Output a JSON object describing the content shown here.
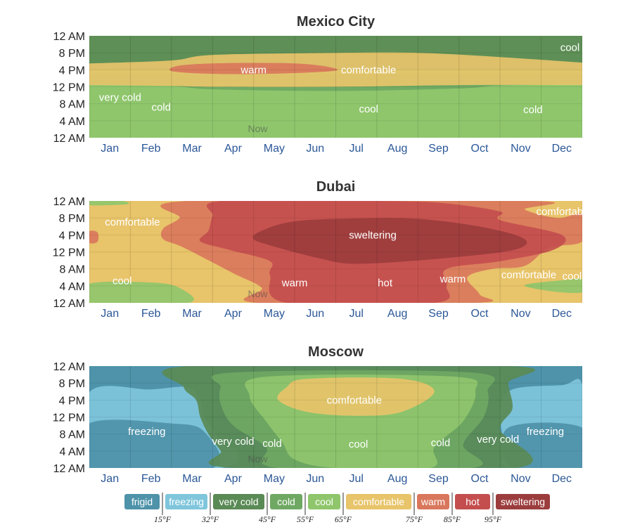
{
  "colors": {
    "frigid": "#4e93a9",
    "freezing": "#7fc6dc",
    "very cold": "#5a8a55",
    "cold": "#6fa863",
    "cool": "#8fc66c",
    "comfortable": "#e8c46a",
    "warm": "#d9775c",
    "hot": "#c44e4e",
    "sweltering": "#9c3d3d"
  },
  "chart_data": [
    {
      "type": "heatmap",
      "title": "Mexico City",
      "categories": [
        "Jan",
        "Feb",
        "Mar",
        "Apr",
        "May",
        "Jun",
        "Jul",
        "Aug",
        "Sep",
        "Oct",
        "Nov",
        "Dec"
      ],
      "y_ticks": [
        "12 AM",
        "8 PM",
        "4 PM",
        "12 PM",
        "8 AM",
        "4 AM",
        "12 AM"
      ],
      "now_label": "Now",
      "now_month": 4.1,
      "background": "cool",
      "bands": [
        {
          "cat": "very cold",
          "top": [
            [
              0,
              16
            ],
            [
              12,
              16
            ]
          ],
          "bottom": [
            [
              0,
              24
            ],
            [
              12,
              24
            ]
          ]
        },
        {
          "cat": "cold",
          "top": [
            [
              0,
              12.5
            ],
            [
              2,
              12.2
            ],
            [
              3,
              11.4
            ],
            [
              6,
              11
            ],
            [
              9,
              11.6
            ],
            [
              10,
              12.3
            ],
            [
              12,
              12.5
            ]
          ],
          "bottom": [
            [
              0,
              15
            ],
            [
              12,
              15
            ]
          ]
        },
        {
          "cat": "cool",
          "top": [
            [
              0,
              10
            ],
            [
              2,
              10
            ],
            [
              3,
              9.6
            ],
            [
              6,
              9.3
            ],
            [
              9,
              9.8
            ],
            [
              10,
              10
            ],
            [
              12,
              10
            ]
          ],
          "bottom": [
            [
              0,
              3.2
            ],
            [
              3,
              4
            ],
            [
              4,
              4.8
            ],
            [
              6,
              4.5
            ],
            [
              8,
              4.5
            ],
            [
              10,
              3.2
            ],
            [
              12,
              3.2
            ]
          ]
        },
        {
          "cat": "comfortable",
          "top": [
            [
              0,
              12.4
            ],
            [
              2,
              12.2
            ],
            [
              3,
              12
            ],
            [
              6,
              12
            ],
            [
              9,
              12.4
            ],
            [
              12,
              12.4
            ]
          ],
          "bottom": [
            [
              0,
              17.5
            ],
            [
              2,
              18.2
            ],
            [
              3,
              19.5
            ],
            [
              6,
              20
            ],
            [
              8,
              20
            ],
            [
              10,
              19
            ],
            [
              12,
              17.7
            ]
          ]
        },
        {
          "cat": "warm",
          "top": [
            [
              2.05,
              15.6
            ],
            [
              3.4,
              15
            ],
            [
              5.2,
              15.3
            ],
            [
              6.05,
              16
            ],
            [
              5.2,
              17.4
            ],
            [
              3.4,
              17.6
            ],
            [
              2.2,
              17
            ]
          ],
          "bottom": null,
          "closed": true
        }
      ],
      "labels": [
        {
          "text": "warm",
          "month": 4.0,
          "hour": 16
        },
        {
          "text": "comfortable",
          "month": 6.8,
          "hour": 16
        },
        {
          "text": "cool",
          "month": 11.7,
          "hour": 21.3
        },
        {
          "text": "very cold",
          "month": 0.75,
          "hour": 9.5
        },
        {
          "text": "cold",
          "month": 1.75,
          "hour": 7.2
        },
        {
          "text": "cool",
          "month": 6.8,
          "hour": 6.8
        },
        {
          "text": "cold",
          "month": 10.8,
          "hour": 6.6
        }
      ]
    },
    {
      "type": "heatmap",
      "title": "Dubai",
      "categories": [
        "Jan",
        "Feb",
        "Mar",
        "Apr",
        "May",
        "Jun",
        "Jul",
        "Aug",
        "Sep",
        "Oct",
        "Nov",
        "Dec"
      ],
      "y_ticks": [
        "12 AM",
        "8 PM",
        "4 PM",
        "12 PM",
        "8 AM",
        "4 AM",
        "12 AM"
      ],
      "now_label": "Now",
      "now_month": 4.1,
      "background": "comfortable",
      "bands": [
        {
          "cat": "cool",
          "top": [
            [
              0,
              4.5
            ],
            [
              1.5,
              4.8
            ],
            [
              2.2,
              3.5
            ],
            [
              2.4,
              0
            ],
            [
              0,
              0
            ]
          ],
          "bottom": null,
          "closed": true
        },
        {
          "cat": "cool",
          "top": [
            [
              12,
              2.5
            ],
            [
              11.2,
              2.8
            ],
            [
              10.6,
              4.2
            ],
            [
              11.6,
              5.4
            ],
            [
              12,
              5.5
            ]
          ],
          "bottom": null,
          "closed": true
        },
        {
          "cat": "cool",
          "top": [
            [
              0,
              24
            ],
            [
              0.8,
              24
            ],
            [
              0.9,
              23.2
            ],
            [
              0,
              23
            ]
          ],
          "bottom": null,
          "closed": true
        },
        {
          "cat": "warm",
          "top": [
            [
              1.8,
              15
            ],
            [
              2.3,
              13
            ],
            [
              3.5,
              7
            ],
            [
              4.2,
              3.5
            ],
            [
              4.1,
              0
            ],
            [
              9.4,
              0
            ],
            [
              9.5,
              2
            ],
            [
              9.2,
              6
            ],
            [
              9.8,
              8
            ],
            [
              10.6,
              8.7
            ],
            [
              11.2,
              13
            ],
            [
              12,
              14.5
            ],
            [
              12,
              20.8
            ],
            [
              11.4,
              20
            ],
            [
              10.6,
              22
            ],
            [
              10.8,
              24
            ],
            [
              2.4,
              24
            ],
            [
              2.2,
              20
            ],
            [
              1.8,
              17.5
            ]
          ]
        },
        {
          "cat": "hot",
          "top": [
            [
              2.7,
              14.5
            ],
            [
              3.4,
              12.5
            ],
            [
              4.4,
              9.8
            ],
            [
              4.4,
              6.5
            ],
            [
              4.8,
              0
            ],
            [
              8.4,
              0
            ],
            [
              8.7,
              4
            ],
            [
              8.7,
              8
            ],
            [
              10,
              9.8
            ],
            [
              11.3,
              12.5
            ],
            [
              11.5,
              16
            ],
            [
              10,
              19.5
            ],
            [
              10,
              21.5
            ],
            [
              8.6,
              23.5
            ],
            [
              7,
              24
            ],
            [
              3.2,
              24
            ],
            [
              3,
              20.5
            ],
            [
              2.9,
              17
            ]
          ]
        },
        {
          "cat": "sweltering",
          "top": [
            [
              4.0,
              15
            ],
            [
              4.6,
              13
            ],
            [
              5.6,
              10.5
            ],
            [
              6.5,
              9.2
            ],
            [
              8.5,
              10.4
            ],
            [
              10.3,
              12.4
            ],
            [
              10.6,
              15
            ],
            [
              9.6,
              17.8
            ],
            [
              8,
              19.8
            ],
            [
              6.5,
              19.9
            ],
            [
              5,
              19.2
            ],
            [
              4.2,
              17
            ]
          ]
        },
        {
          "cat": "warm",
          "top": [
            [
              0,
              14.2
            ],
            [
              0.2,
              14.4
            ],
            [
              0.2,
              16.6
            ],
            [
              0,
              16.8
            ]
          ],
          "bottom": null,
          "closed": true
        }
      ],
      "labels": [
        {
          "text": "comfortable",
          "month": 1.05,
          "hour": 19
        },
        {
          "text": "comfortable",
          "month": 11.55,
          "hour": 21.5
        },
        {
          "text": "sweltering",
          "month": 6.9,
          "hour": 16
        },
        {
          "text": "cool",
          "month": 0.8,
          "hour": 5.2
        },
        {
          "text": "warm",
          "month": 5.0,
          "hour": 4.7
        },
        {
          "text": "hot",
          "month": 7.2,
          "hour": 4.7
        },
        {
          "text": "warm",
          "month": 8.85,
          "hour": 5.6
        },
        {
          "text": "comfortable",
          "month": 10.7,
          "hour": 6.6
        },
        {
          "text": "cool",
          "month": 11.75,
          "hour": 6.3
        }
      ]
    },
    {
      "type": "heatmap",
      "title": "Moscow",
      "categories": [
        "Jan",
        "Feb",
        "Mar",
        "Apr",
        "May",
        "Jun",
        "Jul",
        "Aug",
        "Sep",
        "Oct",
        "Nov",
        "Dec"
      ],
      "y_ticks": [
        "12 AM",
        "8 PM",
        "4 PM",
        "12 PM",
        "8 AM",
        "4 AM",
        "12 AM"
      ],
      "now_label": "Now",
      "now_month": 4.1,
      "background": "frigid",
      "bands": [
        {
          "cat": "freezing",
          "top": [
            [
              0,
              17.8
            ],
            [
              1.5,
              18.5
            ],
            [
              2.4,
              19
            ],
            [
              2.7,
              16
            ],
            [
              2.8,
              12
            ],
            [
              3,
              9
            ],
            [
              3.3,
              5
            ],
            [
              3.6,
              4
            ],
            [
              3.2,
              0
            ],
            [
              0,
              0
            ]
          ],
          "bottom": null,
          "closed": true
        },
        {
          "cat": "freezing",
          "top": [
            [
              12,
              19.5
            ],
            [
              11.5,
              19.5
            ],
            [
              10.3,
              18.5
            ],
            [
              10,
              14
            ],
            [
              10.05,
              8
            ],
            [
              10.1,
              4
            ],
            [
              10.2,
              0
            ],
            [
              12,
              0
            ]
          ],
          "bottom": null,
          "closed": true
        },
        {
          "cat": "frigid",
          "top": [
            [
              0,
              10.5
            ],
            [
              2,
              10.5
            ],
            [
              2.8,
              8.5
            ],
            [
              3,
              0
            ],
            [
              0,
              0
            ]
          ],
          "bottom": null,
          "closed": true
        },
        {
          "cat": "frigid",
          "top": [
            [
              12,
              9.5
            ],
            [
              10.2,
              9.5
            ],
            [
              10.3,
              0
            ],
            [
              12,
              0
            ]
          ],
          "bottom": null,
          "closed": true
        },
        {
          "cat": "very cold",
          "top": [
            [
              2.4,
              24
            ],
            [
              10.3,
              24
            ],
            [
              10.2,
              20
            ],
            [
              10.3,
              14
            ],
            [
              10,
              9
            ],
            [
              10.4,
              0
            ],
            [
              3.5,
              0
            ],
            [
              3.2,
              4
            ],
            [
              2.9,
              8
            ],
            [
              2.7,
              12
            ],
            [
              2.6,
              16
            ],
            [
              2.3,
              19
            ]
          ]
        },
        {
          "cat": "cold",
          "top": [
            [
              3.5,
              22.5
            ],
            [
              9.3,
              22.5
            ],
            [
              9.7,
              18
            ],
            [
              9.6,
              12
            ],
            [
              9.1,
              5.5
            ],
            [
              9.3,
              0
            ],
            [
              4.6,
              0
            ],
            [
              4.3,
              5
            ],
            [
              3.5,
              10
            ],
            [
              3.2,
              15
            ],
            [
              3.2,
              19
            ]
          ]
        },
        {
          "cat": "cool",
          "top": [
            [
              4.3,
              21.5
            ],
            [
              8.9,
              21.5
            ],
            [
              9.4,
              18
            ],
            [
              9.1,
              11
            ],
            [
              8.4,
              5
            ],
            [
              8.3,
              0
            ],
            [
              6,
              0
            ],
            [
              5,
              2
            ],
            [
              4.7,
              6
            ],
            [
              4.3,
              11
            ],
            [
              3.9,
              17
            ]
          ]
        },
        {
          "cat": "comfortable",
          "top": [
            [
              5.3,
              21
            ],
            [
              7.6,
              21
            ],
            [
              8.4,
              18
            ],
            [
              7.6,
              13.2
            ],
            [
              6.5,
              12.3
            ],
            [
              5.3,
              13.2
            ],
            [
              4.6,
              16
            ],
            [
              4.8,
              19
            ]
          ]
        }
      ],
      "labels": [
        {
          "text": "comfortable",
          "month": 6.45,
          "hour": 16
        },
        {
          "text": "freezing",
          "month": 1.4,
          "hour": 8.6
        },
        {
          "text": "freezing",
          "month": 11.1,
          "hour": 8.6
        },
        {
          "text": "very cold",
          "month": 3.5,
          "hour": 6.3
        },
        {
          "text": "cold",
          "month": 4.45,
          "hour": 5.8
        },
        {
          "text": "cool",
          "month": 6.55,
          "hour": 5.6
        },
        {
          "text": "cold",
          "month": 8.55,
          "hour": 6
        },
        {
          "text": "very cold",
          "month": 9.95,
          "hour": 6.8
        }
      ]
    }
  ],
  "legend": {
    "items": [
      {
        "label": "frigid",
        "color": "frigid"
      },
      {
        "label": "freezing",
        "color": "freezing"
      },
      {
        "label": "very cold",
        "color": "very cold"
      },
      {
        "label": "cold",
        "color": "cold"
      },
      {
        "label": "cool",
        "color": "cool"
      },
      {
        "label": "comfortable",
        "color": "comfortable"
      },
      {
        "label": "warm",
        "color": "warm"
      },
      {
        "label": "hot",
        "color": "hot"
      },
      {
        "label": "sweltering",
        "color": "sweltering"
      }
    ],
    "thresholds": [
      "15°F",
      "32°F",
      "45°F",
      "55°F",
      "65°F",
      "75°F",
      "85°F",
      "95°F"
    ]
  }
}
